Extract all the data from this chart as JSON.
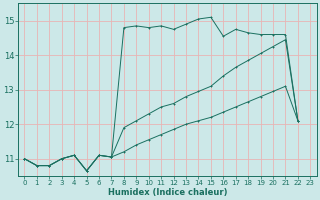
{
  "xlabel": "Humidex (Indice chaleur)",
  "ylabel": "",
  "xlim": [
    -0.5,
    23.5
  ],
  "ylim": [
    10.5,
    15.5
  ],
  "yticks": [
    11,
    12,
    13,
    14,
    15
  ],
  "xticks": [
    0,
    1,
    2,
    3,
    4,
    5,
    6,
    7,
    8,
    9,
    10,
    11,
    12,
    13,
    14,
    15,
    16,
    17,
    18,
    19,
    20,
    21,
    22,
    23
  ],
  "bg_color": "#cce8e8",
  "grid_color": "#e8b4b4",
  "line_color": "#1a7060",
  "series1_x": [
    0,
    1,
    2,
    3,
    4,
    5,
    6,
    7,
    8,
    9,
    10,
    11,
    12,
    13,
    14,
    15,
    16,
    17,
    18,
    19,
    20,
    21,
    22
  ],
  "series1_y": [
    11.0,
    10.8,
    10.8,
    11.0,
    11.1,
    10.65,
    11.1,
    11.05,
    11.2,
    11.4,
    11.55,
    11.7,
    11.85,
    12.0,
    12.1,
    12.2,
    12.35,
    12.5,
    12.65,
    12.8,
    12.95,
    13.1,
    12.1
  ],
  "series2_x": [
    0,
    1,
    2,
    3,
    4,
    5,
    6,
    7,
    8,
    9,
    10,
    11,
    12,
    13,
    14,
    15,
    16,
    17,
    18,
    19,
    20,
    21,
    22
  ],
  "series2_y": [
    11.0,
    10.8,
    10.8,
    11.0,
    11.1,
    10.65,
    11.1,
    11.05,
    14.8,
    14.85,
    14.8,
    14.85,
    14.75,
    14.9,
    15.05,
    15.1,
    14.55,
    14.75,
    14.65,
    14.6,
    14.6,
    14.6,
    12.1
  ],
  "series3_x": [
    0,
    1,
    2,
    3,
    4,
    5,
    6,
    7,
    8,
    9,
    10,
    11,
    12,
    13,
    14,
    15,
    16,
    17,
    18,
    19,
    20,
    21,
    22
  ],
  "series3_y": [
    11.0,
    10.8,
    10.8,
    11.0,
    11.1,
    10.65,
    11.1,
    11.05,
    11.9,
    12.1,
    12.3,
    12.5,
    12.6,
    12.8,
    12.95,
    13.1,
    13.4,
    13.65,
    13.85,
    14.05,
    14.25,
    14.45,
    12.1
  ]
}
